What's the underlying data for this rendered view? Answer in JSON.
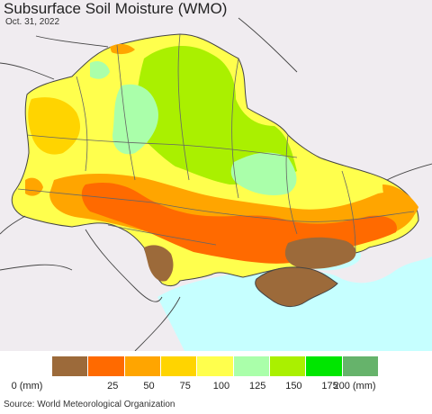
{
  "title": "Subsurface Soil Moisture (WMO)",
  "date": "Oct. 31, 2022",
  "source": "Source: World Meteorological Organization",
  "legend": {
    "colors": [
      "#9c6a3a",
      "#ff6a00",
      "#ffa500",
      "#ffd400",
      "#ffff4d",
      "#aaffaa",
      "#aaf000",
      "#00e600",
      "#66b36b"
    ],
    "ticks": [
      "0 (mm)",
      "25",
      "50",
      "75",
      "100",
      "125",
      "150",
      "175",
      "200 (mm)"
    ]
  },
  "map_colors": {
    "background": "#f0ecf0",
    "sea": "#c6ffff",
    "border": "#444444"
  }
}
